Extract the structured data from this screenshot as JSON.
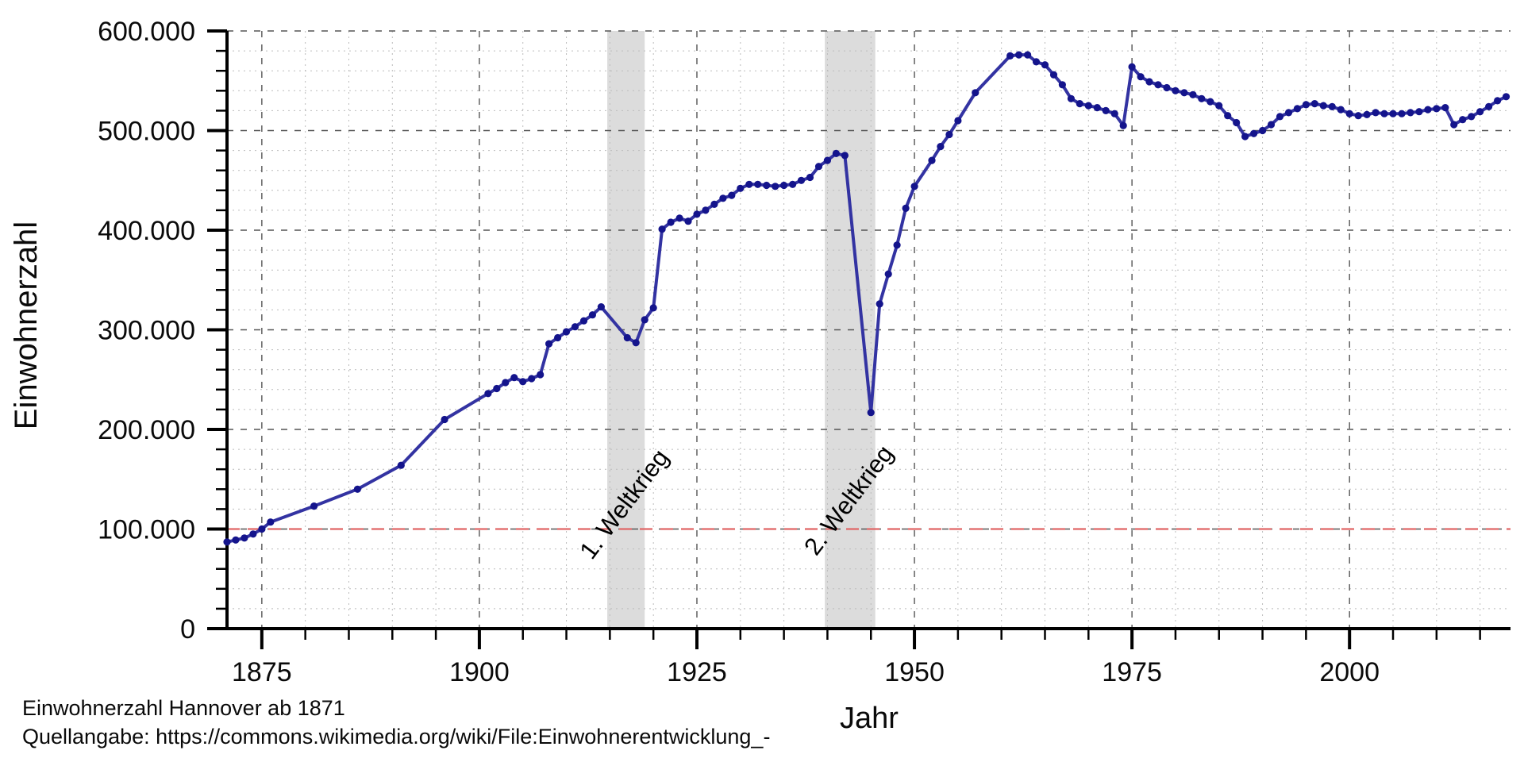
{
  "caption": {
    "line1": "Einwohnerzahl Hannover ab 1871",
    "line2": "Quellangabe: https://commons.wikimedia.org/wiki/File:Einwohnerentwicklung_-"
  },
  "colors": {
    "line": "#3333a2",
    "marker": "#14148c",
    "reference_line": "#e06666",
    "band": "#dcdcdc",
    "grid_major": "#555555",
    "grid_minor": "#bcbcbc",
    "axis": "#000000",
    "text": "#0a0a0a"
  },
  "chart_data": {
    "type": "line",
    "title": "Einwohnerzahl Hannover ab 1871",
    "xlabel": "Jahr",
    "ylabel": "Einwohnerzahl",
    "xlim": [
      1871,
      2018.5
    ],
    "ylim": [
      0,
      600000
    ],
    "grid": true,
    "legend": "none",
    "y_ticks": [
      {
        "value": 0,
        "label": "0"
      },
      {
        "value": 100000,
        "label": "100.000"
      },
      {
        "value": 200000,
        "label": "200.000"
      },
      {
        "value": 300000,
        "label": "300.000"
      },
      {
        "value": 400000,
        "label": "400.000"
      },
      {
        "value": 500000,
        "label": "500.000"
      },
      {
        "value": 600000,
        "label": "600.000"
      }
    ],
    "x_ticks": [
      {
        "value": 1875,
        "label": "1875"
      },
      {
        "value": 1900,
        "label": "1900"
      },
      {
        "value": 1925,
        "label": "1925"
      },
      {
        "value": 1950,
        "label": "1950"
      },
      {
        "value": 1975,
        "label": "1975"
      },
      {
        "value": 2000,
        "label": "2000"
      }
    ],
    "x_minor_step": 5,
    "y_minor_step": 20000,
    "reference_line": {
      "y": 100000,
      "style": "dashed",
      "color": "#e06666"
    },
    "bands": [
      {
        "label": "1. Weltkrieg",
        "from": 1914.7,
        "to": 1919.0
      },
      {
        "label": "2. Weltkrieg",
        "from": 1939.7,
        "to": 1945.5
      }
    ],
    "annotations": [
      {
        "text": "1. Weltkrieg",
        "x": 1917.4,
        "y": 120000,
        "rotation": -53
      },
      {
        "text": "2. Weltkrieg",
        "x": 1943.2,
        "y": 124000,
        "rotation": -53
      }
    ],
    "series": [
      {
        "name": "Einwohnerzahl Hannover",
        "color": "#3333a2",
        "marker": "circle",
        "marker_color": "#14148c",
        "points": [
          [
            1871,
            87000
          ],
          [
            1872,
            89000
          ],
          [
            1873,
            91000
          ],
          [
            1874,
            95000
          ],
          [
            1875,
            100000
          ],
          [
            1876,
            107000
          ],
          [
            1881,
            123000
          ],
          [
            1886,
            140000
          ],
          [
            1891,
            164000
          ],
          [
            1896,
            210000
          ],
          [
            1901,
            236000
          ],
          [
            1902,
            241000
          ],
          [
            1903,
            247000
          ],
          [
            1904,
            252000
          ],
          [
            1905,
            248000
          ],
          [
            1906,
            251000
          ],
          [
            1907,
            255000
          ],
          [
            1908,
            286000
          ],
          [
            1909,
            292000
          ],
          [
            1910,
            298000
          ],
          [
            1911,
            303000
          ],
          [
            1912,
            309000
          ],
          [
            1913,
            315000
          ],
          [
            1914,
            323000
          ],
          [
            1917,
            292000
          ],
          [
            1918,
            287000
          ],
          [
            1919,
            310000
          ],
          [
            1920,
            322000
          ],
          [
            1921,
            401000
          ],
          [
            1922,
            408000
          ],
          [
            1923,
            412000
          ],
          [
            1924,
            409000
          ],
          [
            1925,
            416000
          ],
          [
            1926,
            420000
          ],
          [
            1927,
            426000
          ],
          [
            1928,
            432000
          ],
          [
            1929,
            435000
          ],
          [
            1930,
            442000
          ],
          [
            1931,
            446000
          ],
          [
            1932,
            446000
          ],
          [
            1933,
            445000
          ],
          [
            1934,
            444000
          ],
          [
            1935,
            445000
          ],
          [
            1936,
            446000
          ],
          [
            1937,
            450000
          ],
          [
            1938,
            453000
          ],
          [
            1939,
            464000
          ],
          [
            1940,
            470000
          ],
          [
            1941,
            477000
          ],
          [
            1942,
            475000
          ],
          [
            1945,
            217000
          ],
          [
            1946,
            326000
          ],
          [
            1947,
            356000
          ],
          [
            1948,
            385000
          ],
          [
            1949,
            422000
          ],
          [
            1950,
            444000
          ],
          [
            1952,
            470000
          ],
          [
            1953,
            484000
          ],
          [
            1954,
            496000
          ],
          [
            1955,
            510000
          ],
          [
            1957,
            538000
          ],
          [
            1961,
            575000
          ],
          [
            1962,
            576000
          ],
          [
            1963,
            576000
          ],
          [
            1964,
            569000
          ],
          [
            1965,
            566000
          ],
          [
            1966,
            556000
          ],
          [
            1967,
            546000
          ],
          [
            1968,
            532000
          ],
          [
            1969,
            527000
          ],
          [
            1970,
            525000
          ],
          [
            1971,
            523000
          ],
          [
            1972,
            520000
          ],
          [
            1973,
            517000
          ],
          [
            1974,
            505000
          ],
          [
            1975,
            564000
          ],
          [
            1976,
            554000
          ],
          [
            1977,
            549000
          ],
          [
            1978,
            546000
          ],
          [
            1979,
            543000
          ],
          [
            1980,
            540000
          ],
          [
            1981,
            538000
          ],
          [
            1982,
            536000
          ],
          [
            1983,
            532000
          ],
          [
            1984,
            529000
          ],
          [
            1985,
            525000
          ],
          [
            1986,
            515000
          ],
          [
            1987,
            508000
          ],
          [
            1988,
            494000
          ],
          [
            1989,
            497000
          ],
          [
            1990,
            500000
          ],
          [
            1991,
            506000
          ],
          [
            1992,
            514000
          ],
          [
            1993,
            518000
          ],
          [
            1994,
            522000
          ],
          [
            1995,
            526000
          ],
          [
            1996,
            527000
          ],
          [
            1997,
            525000
          ],
          [
            1998,
            524000
          ],
          [
            1999,
            521000
          ],
          [
            2000,
            517000
          ],
          [
            2001,
            515000
          ],
          [
            2002,
            516000
          ],
          [
            2003,
            518000
          ],
          [
            2004,
            517000
          ],
          [
            2005,
            517000
          ],
          [
            2006,
            517000
          ],
          [
            2007,
            518000
          ],
          [
            2008,
            519000
          ],
          [
            2009,
            521000
          ],
          [
            2010,
            522000
          ],
          [
            2011,
            523000
          ],
          [
            2012,
            506000
          ],
          [
            2013,
            511000
          ],
          [
            2014,
            514000
          ],
          [
            2015,
            519000
          ],
          [
            2016,
            524000
          ],
          [
            2017,
            530000
          ],
          [
            2018,
            534000
          ]
        ]
      }
    ]
  }
}
